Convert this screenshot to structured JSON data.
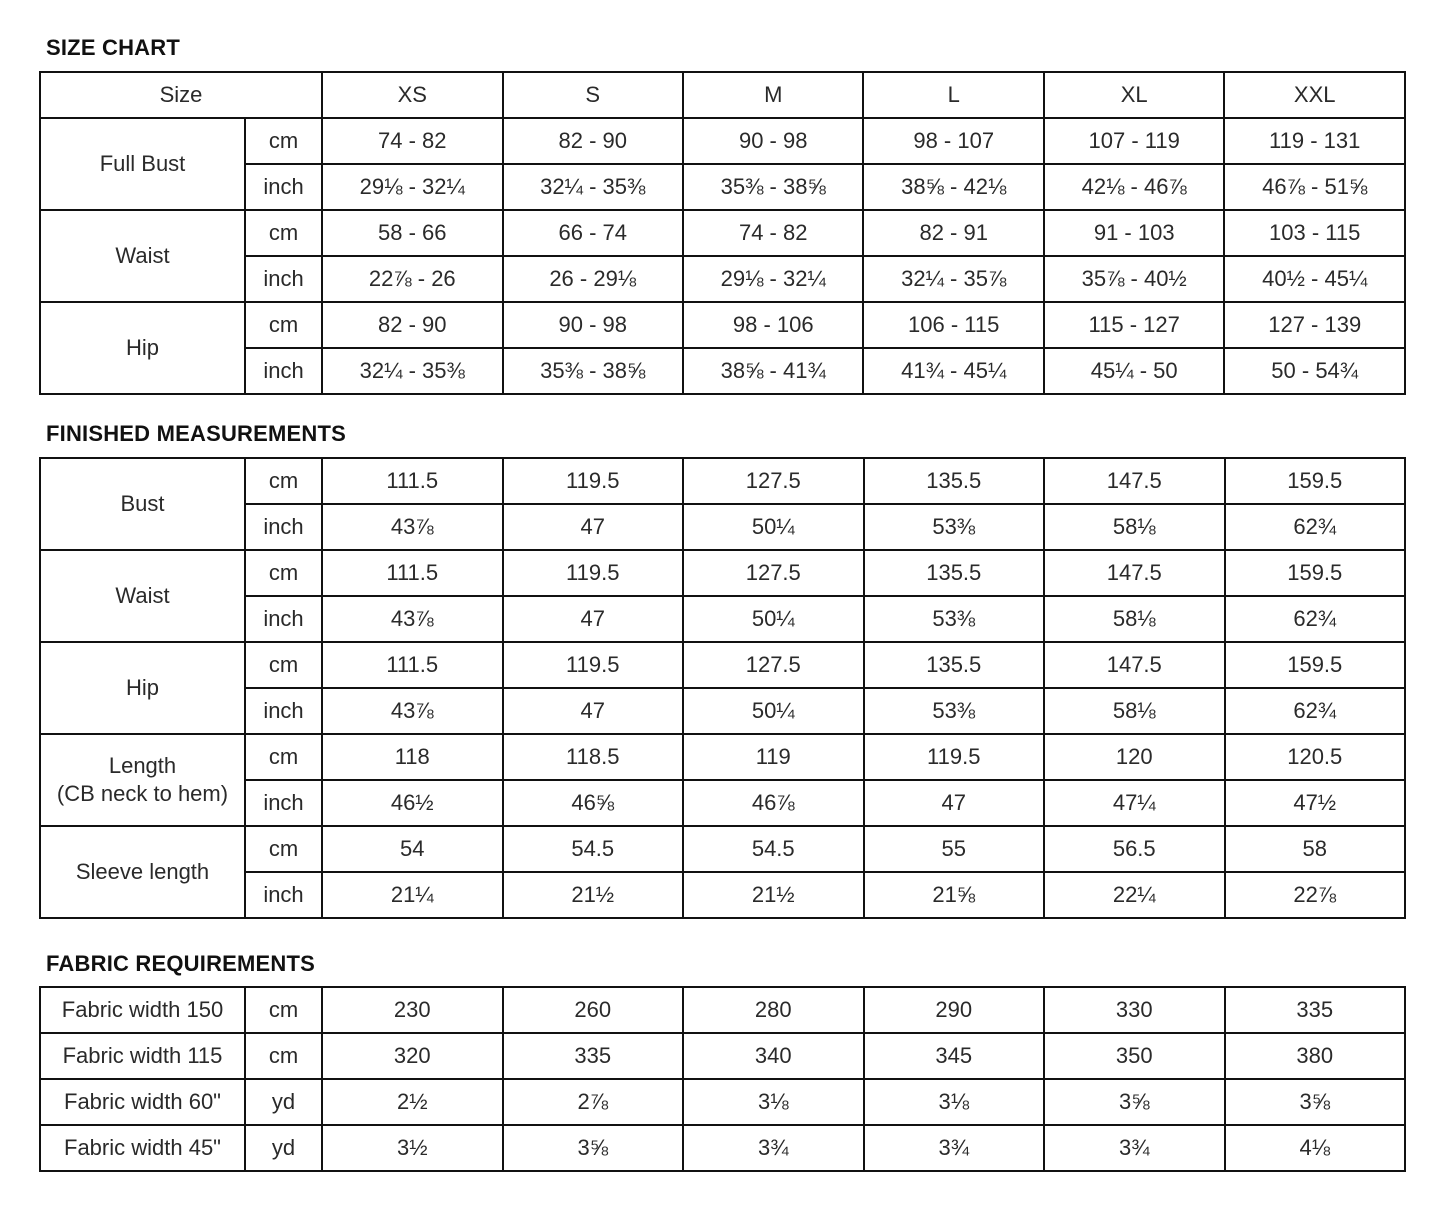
{
  "size_chart": {
    "heading": "SIZE CHART",
    "header": {
      "label": "Size",
      "sizes": [
        "XS",
        "S",
        "M",
        "L",
        "XL",
        "XXL"
      ]
    },
    "groups": [
      {
        "label": "Full Bust",
        "rows": [
          {
            "unit": "cm",
            "values": [
              "74 - 82",
              "82 - 90",
              "90 - 98",
              "98 - 107",
              "107 - 119",
              "119 - 131"
            ]
          },
          {
            "unit": "inch",
            "values": [
              "29⅛ - 32¼",
              "32¼ - 35⅜",
              "35⅜ - 38⅝",
              "38⅝ - 42⅛",
              "42⅛ - 46⅞",
              "46⅞ - 51⅝"
            ]
          }
        ]
      },
      {
        "label": "Waist",
        "rows": [
          {
            "unit": "cm",
            "values": [
              "58 - 66",
              "66 - 74",
              "74 - 82",
              "82 - 91",
              "91 - 103",
              "103 - 115"
            ]
          },
          {
            "unit": "inch",
            "values": [
              "22⅞ - 26",
              "26 - 29⅛",
              "29⅛ - 32¼",
              "32¼ - 35⅞",
              "35⅞ - 40½",
              "40½ - 45¼"
            ]
          }
        ]
      },
      {
        "label": "Hip",
        "rows": [
          {
            "unit": "cm",
            "values": [
              "82 - 90",
              "90 - 98",
              "98 - 106",
              "106 - 115",
              "115 - 127",
              "127 - 139"
            ]
          },
          {
            "unit": "inch",
            "values": [
              "32¼ - 35⅜",
              "35⅜ - 38⅝",
              "38⅝ - 41¾",
              "41¾ - 45¼",
              "45¼ - 50",
              "50 - 54¾"
            ]
          }
        ]
      }
    ]
  },
  "finished_measurements": {
    "heading": "FINISHED MEASUREMENTS",
    "groups": [
      {
        "label": "Bust",
        "rows": [
          {
            "unit": "cm",
            "values": [
              "111.5",
              "119.5",
              "127.5",
              "135.5",
              "147.5",
              "159.5"
            ]
          },
          {
            "unit": "inch",
            "values": [
              "43⅞",
              "47",
              "50¼",
              "53⅜",
              "58⅛",
              "62¾"
            ]
          }
        ]
      },
      {
        "label": "Waist",
        "rows": [
          {
            "unit": "cm",
            "values": [
              "111.5",
              "119.5",
              "127.5",
              "135.5",
              "147.5",
              "159.5"
            ]
          },
          {
            "unit": "inch",
            "values": [
              "43⅞",
              "47",
              "50¼",
              "53⅜",
              "58⅛",
              "62¾"
            ]
          }
        ]
      },
      {
        "label": "Hip",
        "rows": [
          {
            "unit": "cm",
            "values": [
              "111.5",
              "119.5",
              "127.5",
              "135.5",
              "147.5",
              "159.5"
            ]
          },
          {
            "unit": "inch",
            "values": [
              "43⅞",
              "47",
              "50¼",
              "53⅜",
              "58⅛",
              "62¾"
            ]
          }
        ]
      },
      {
        "label": "Length",
        "sublabel": "(CB neck to hem)",
        "rows": [
          {
            "unit": "cm",
            "values": [
              "118",
              "118.5",
              "119",
              "119.5",
              "120",
              "120.5"
            ]
          },
          {
            "unit": "inch",
            "values": [
              "46½",
              "46⅝",
              "46⅞",
              "47",
              "47¼",
              "47½"
            ]
          }
        ]
      },
      {
        "label": "Sleeve length",
        "rows": [
          {
            "unit": "cm",
            "values": [
              "54",
              "54.5",
              "54.5",
              "55",
              "56.5",
              "58"
            ]
          },
          {
            "unit": "inch",
            "values": [
              "21¼",
              "21½",
              "21½",
              "21⅝",
              "22¼",
              "22⅞"
            ]
          }
        ]
      }
    ]
  },
  "fabric_requirements": {
    "heading": "FABRIC REQUIREMENTS",
    "rows": [
      {
        "label": "Fabric width 150",
        "unit": "cm",
        "values": [
          "230",
          "260",
          "280",
          "290",
          "330",
          "335"
        ]
      },
      {
        "label": "Fabric width 115",
        "unit": "cm",
        "values": [
          "320",
          "335",
          "340",
          "345",
          "350",
          "380"
        ]
      },
      {
        "label": "Fabric width 60\"",
        "unit": "yd",
        "values": [
          "2½",
          "2⅞",
          "3⅛",
          "3⅛",
          "3⅝",
          "3⅝"
        ]
      },
      {
        "label": "Fabric width 45\"",
        "unit": "yd",
        "values": [
          "3½",
          "3⅝",
          "3¾",
          "3¾",
          "3¾",
          "4⅛"
        ]
      }
    ]
  }
}
